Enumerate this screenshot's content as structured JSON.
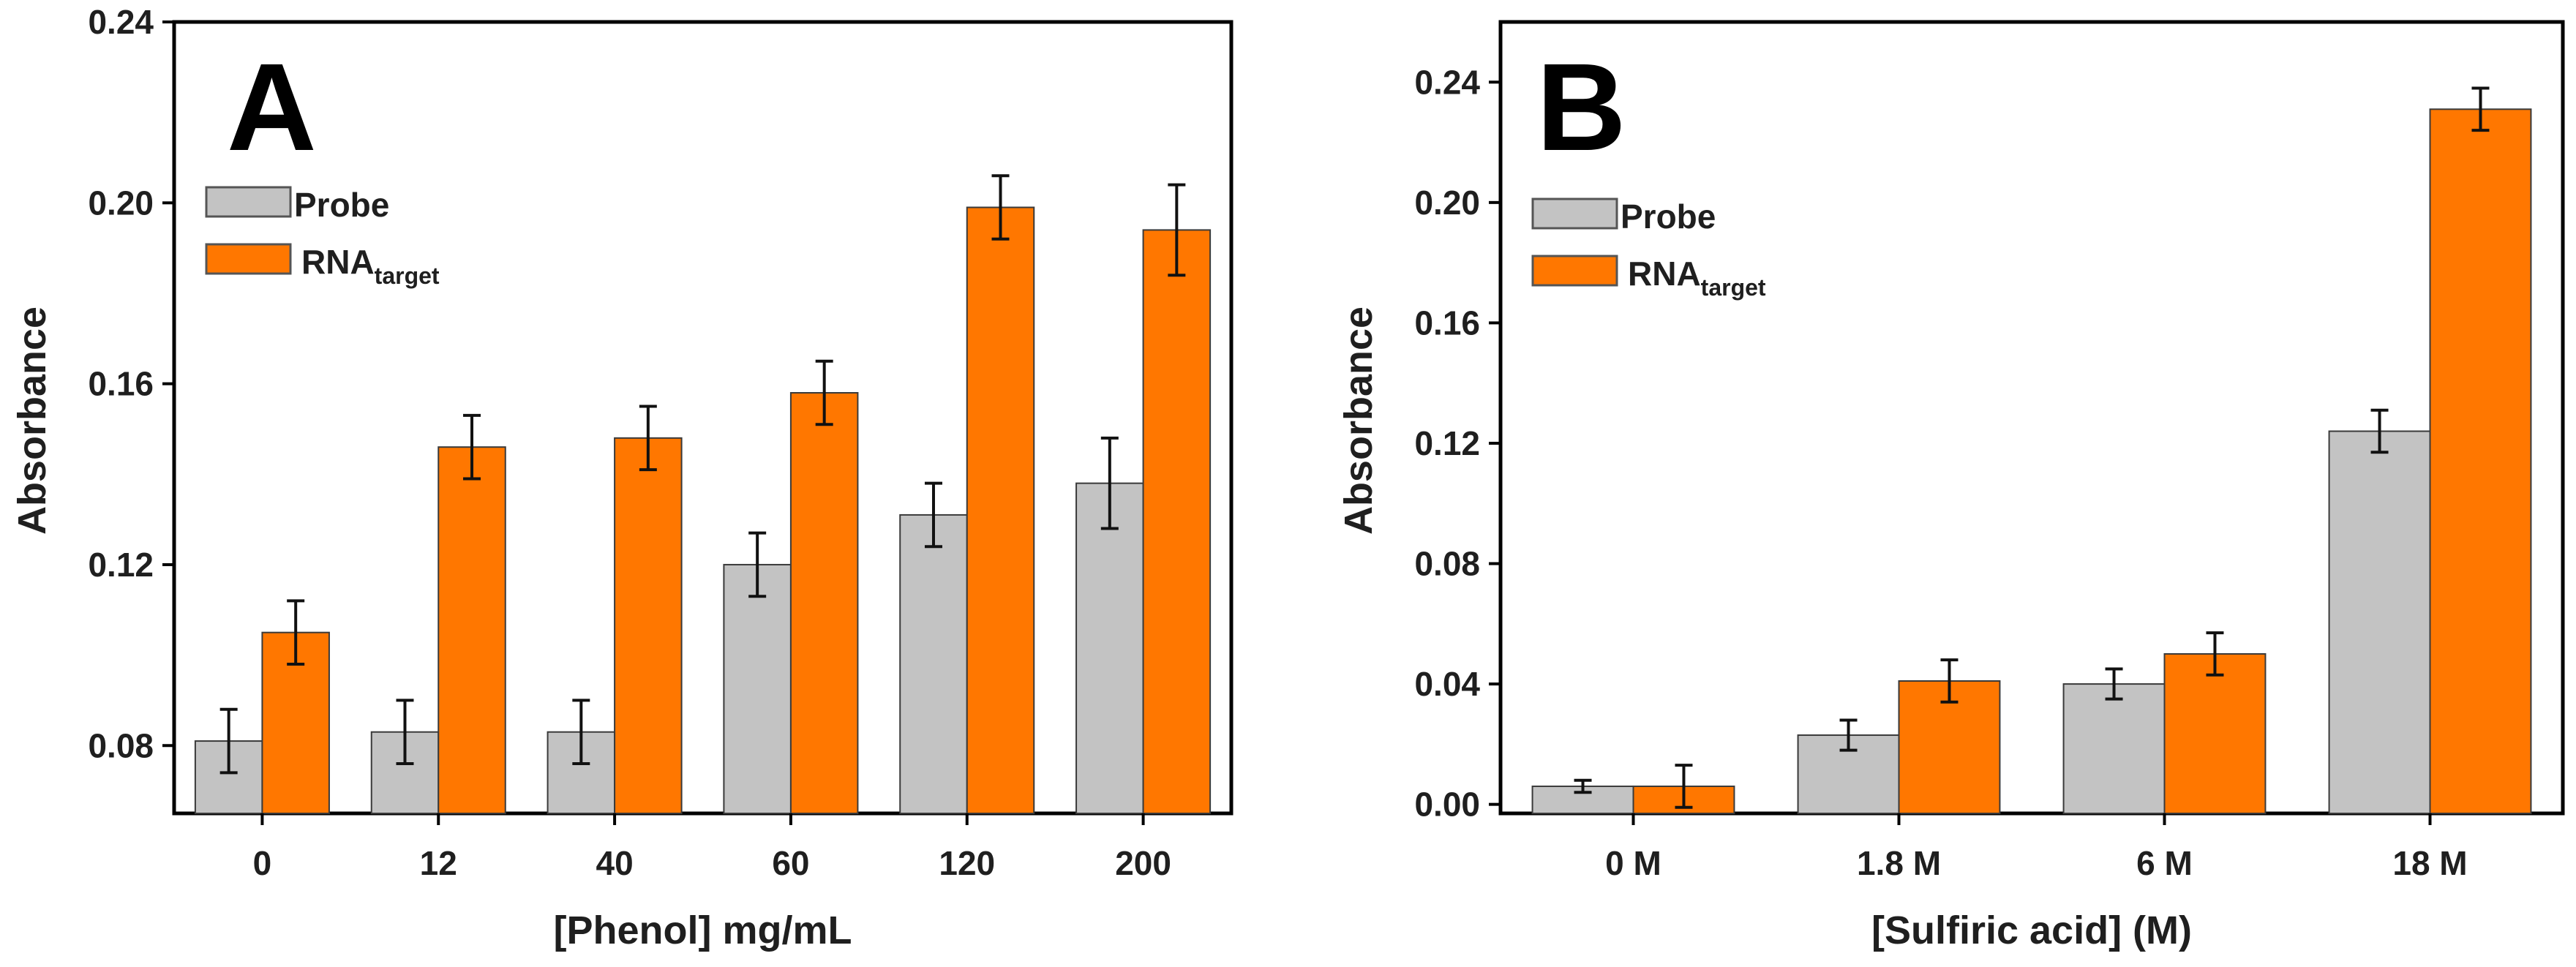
{
  "chart_data": [
    {
      "panel_label": "A",
      "type": "bar",
      "xlabel": "[Phenol] mg/mL",
      "ylabel": "Absorbance",
      "categories": [
        "0",
        "12",
        "40",
        "60",
        "120",
        "200"
      ],
      "ylim": [
        0.065,
        0.24
      ],
      "yticks": [
        0.08,
        0.12,
        0.16,
        0.2,
        0.24
      ],
      "ytick_labels": [
        "0.08",
        "0.12",
        "0.16",
        "0.20",
        "0.24"
      ],
      "legend": {
        "placement": "upper-left",
        "entries": [
          {
            "label": "Probe",
            "color": "#c3c3c3"
          },
          {
            "label": "RNA",
            "subscript": "target",
            "color": "#ff7700"
          }
        ]
      },
      "series": [
        {
          "name": "Probe",
          "color": "#c3c3c3",
          "values": [
            0.081,
            0.083,
            0.083,
            0.12,
            0.131,
            0.138
          ],
          "errors": [
            0.007,
            0.007,
            0.007,
            0.007,
            0.007,
            0.01
          ]
        },
        {
          "name": "RNA target",
          "color": "#ff7700",
          "values": [
            0.105,
            0.146,
            0.148,
            0.158,
            0.199,
            0.194
          ],
          "errors": [
            0.007,
            0.007,
            0.007,
            0.007,
            0.007,
            0.01
          ]
        }
      ]
    },
    {
      "panel_label": "B",
      "type": "bar",
      "xlabel": "[Sulfiric acid] (M)",
      "ylabel": "Absorbance",
      "categories": [
        "0 M",
        "1.8 M",
        "6 M",
        "18 M"
      ],
      "ylim": [
        -0.003,
        0.26
      ],
      "yticks": [
        0.0,
        0.04,
        0.08,
        0.12,
        0.16,
        0.2,
        0.24
      ],
      "ytick_labels": [
        "0.00",
        "0.04",
        "0.08",
        "0.12",
        "0.16",
        "0.20",
        "0.24"
      ],
      "legend": {
        "placement": "upper-left",
        "entries": [
          {
            "label": "Probe",
            "color": "#c3c3c3"
          },
          {
            "label": "RNA",
            "subscript": "target",
            "color": "#ff7700"
          }
        ]
      },
      "series": [
        {
          "name": "Probe",
          "color": "#c3c3c3",
          "values": [
            0.006,
            0.023,
            0.04,
            0.124
          ],
          "errors": [
            0.002,
            0.005,
            0.005,
            0.007
          ]
        },
        {
          "name": "RNA target",
          "color": "#ff7700",
          "values": [
            0.006,
            0.041,
            0.05,
            0.231
          ],
          "errors": [
            0.007,
            0.007,
            0.007,
            0.007
          ]
        }
      ]
    }
  ]
}
